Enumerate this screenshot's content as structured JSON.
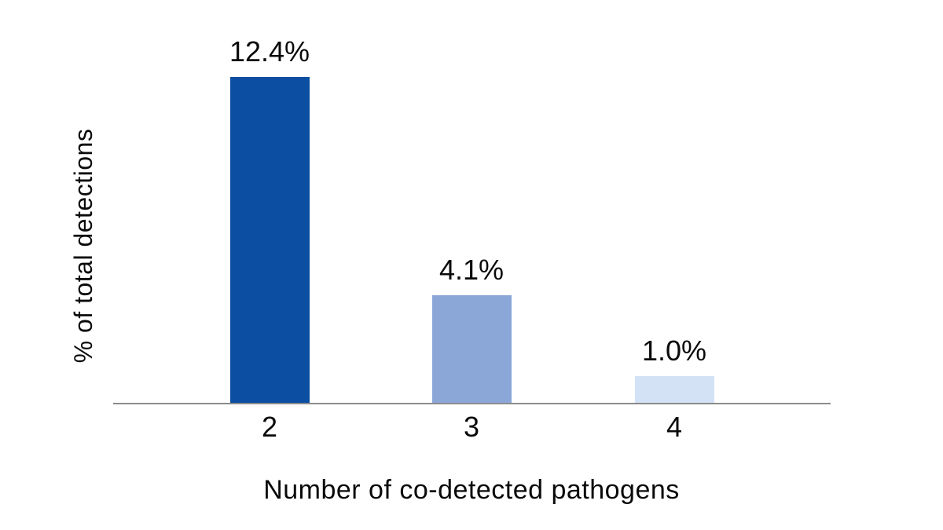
{
  "chart_data": {
    "type": "bar",
    "categories": [
      "2",
      "3",
      "4"
    ],
    "values": [
      12.4,
      4.1,
      1.0
    ],
    "value_labels": [
      "12.4%",
      "4.1%",
      "1.0%"
    ],
    "title": "",
    "xlabel": "Number of co-detected pathogens",
    "ylabel": "% of total detections",
    "ylim": [
      0,
      13
    ],
    "grid": "off",
    "legend": "none",
    "bar_colors": [
      "#0B4EA2",
      "#8AA7D7",
      "#D3E2F5"
    ],
    "axis_line_color": "#8C8C8C",
    "text_color": "#0A0A0A",
    "background_color": "#FFFFFF"
  }
}
